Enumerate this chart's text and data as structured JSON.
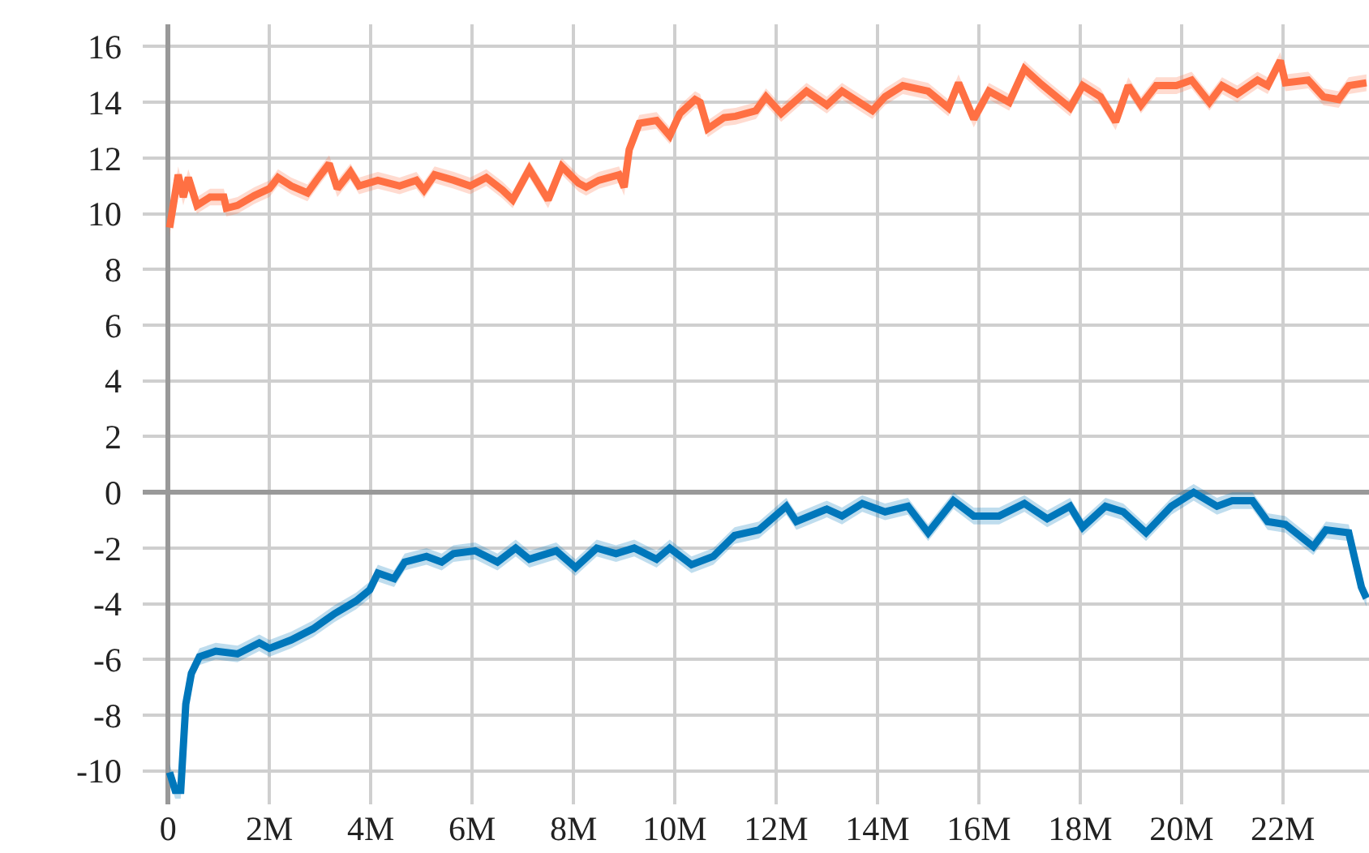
{
  "chart_data": {
    "type": "line",
    "xlim": [
      -0.5,
      23.7
    ],
    "ylim": [
      -11.2,
      16.8
    ],
    "xticks": [
      0,
      {
        "value": 2,
        "label": "2M"
      },
      {
        "value": 4,
        "label": "4M"
      },
      {
        "value": 6,
        "label": "6M"
      },
      {
        "value": 8,
        "label": "8M"
      },
      {
        "value": 10,
        "label": "10M"
      },
      {
        "value": 12,
        "label": "12M"
      },
      {
        "value": 14,
        "label": "14M"
      },
      {
        "value": 16,
        "label": "16M"
      },
      {
        "value": 18,
        "label": "18M"
      },
      {
        "value": 20,
        "label": "20M"
      },
      {
        "value": 22,
        "label": "22M"
      }
    ],
    "yticks": [
      -10,
      -8,
      -6,
      -4,
      -2,
      0,
      2,
      4,
      6,
      8,
      10,
      12,
      14,
      16
    ],
    "grid": true,
    "marker": "none",
    "line_style": "solid",
    "series": [
      {
        "color": "#ff7043",
        "x": [
          0.03,
          0.2,
          0.3,
          0.4,
          0.57,
          0.83,
          1.1,
          1.15,
          1.37,
          1.7,
          2.0,
          2.17,
          2.43,
          2.75,
          2.97,
          3.18,
          3.34,
          3.6,
          3.77,
          4.14,
          4.57,
          4.9,
          5.05,
          5.26,
          5.64,
          5.96,
          6.28,
          6.6,
          6.8,
          7.13,
          7.5,
          7.77,
          8.1,
          8.25,
          8.5,
          8.9,
          9.0,
          9.1,
          9.3,
          9.64,
          9.9,
          10.1,
          10.4,
          10.5,
          10.65,
          10.97,
          11.2,
          11.6,
          11.8,
          12.1,
          12.6,
          13.0,
          13.3,
          13.9,
          14.15,
          14.5,
          15.0,
          15.4,
          15.6,
          15.9,
          16.2,
          16.6,
          16.9,
          17.2,
          17.8,
          18.05,
          18.4,
          18.7,
          18.95,
          19.2,
          19.5,
          19.9,
          20.2,
          20.55,
          20.8,
          21.1,
          21.5,
          21.7,
          21.95,
          22.05,
          22.5,
          22.8,
          23.1,
          23.3,
          23.65
        ],
        "values": [
          9.5,
          11.4,
          10.6,
          11.3,
          10.3,
          10.6,
          10.6,
          10.2,
          10.3,
          10.65,
          10.9,
          11.3,
          11.0,
          10.75,
          11.3,
          11.8,
          10.9,
          11.5,
          11.0,
          11.2,
          11.0,
          11.2,
          10.85,
          11.4,
          11.2,
          11.0,
          11.3,
          10.85,
          10.5,
          11.6,
          10.5,
          11.7,
          11.1,
          10.95,
          11.2,
          11.4,
          10.95,
          12.3,
          13.25,
          13.35,
          12.8,
          13.6,
          14.1,
          14.0,
          13.05,
          13.45,
          13.5,
          13.7,
          14.2,
          13.6,
          14.4,
          13.9,
          14.4,
          13.7,
          14.2,
          14.6,
          14.4,
          13.8,
          14.7,
          13.4,
          14.4,
          14.0,
          15.2,
          14.7,
          13.8,
          14.6,
          14.2,
          13.3,
          14.6,
          13.9,
          14.6,
          14.6,
          14.8,
          14.0,
          14.6,
          14.3,
          14.8,
          14.6,
          15.5,
          14.7,
          14.8,
          14.2,
          14.1,
          14.6,
          14.7
        ],
        "lower": [
          9.2,
          11.1,
          10.3,
          11.0,
          10.0,
          10.3,
          10.3,
          9.9,
          10.0,
          10.35,
          10.6,
          11.0,
          10.7,
          10.45,
          11.0,
          11.5,
          10.6,
          11.2,
          10.7,
          10.9,
          10.7,
          10.9,
          10.55,
          11.1,
          10.9,
          10.7,
          11.0,
          10.55,
          10.2,
          11.3,
          10.2,
          11.4,
          10.8,
          10.65,
          10.9,
          11.1,
          10.65,
          12.0,
          12.95,
          13.05,
          12.5,
          13.3,
          13.8,
          13.7,
          12.75,
          13.15,
          13.2,
          13.4,
          13.9,
          13.3,
          14.1,
          13.6,
          14.1,
          13.4,
          13.9,
          14.3,
          14.1,
          13.5,
          14.4,
          13.1,
          14.1,
          13.7,
          14.9,
          14.4,
          13.5,
          14.3,
          13.9,
          13.0,
          14.3,
          13.6,
          14.3,
          14.3,
          14.5,
          13.7,
          14.3,
          14.0,
          14.5,
          14.3,
          15.2,
          14.4,
          14.5,
          13.9,
          13.8,
          14.3,
          14.4
        ],
        "upper": [
          9.8,
          11.7,
          10.9,
          11.6,
          10.6,
          10.9,
          10.9,
          10.5,
          10.6,
          10.95,
          11.2,
          11.6,
          11.3,
          11.05,
          11.6,
          12.1,
          11.2,
          11.8,
          11.3,
          11.5,
          11.3,
          11.5,
          11.15,
          11.7,
          11.5,
          11.3,
          11.6,
          11.15,
          10.8,
          11.9,
          10.8,
          12.0,
          11.4,
          11.25,
          11.5,
          11.7,
          11.25,
          12.6,
          13.55,
          13.65,
          13.1,
          13.9,
          14.4,
          14.3,
          13.35,
          13.75,
          13.8,
          14.0,
          14.5,
          13.9,
          14.7,
          14.2,
          14.7,
          14.0,
          14.5,
          14.9,
          14.7,
          14.1,
          15.0,
          13.7,
          14.7,
          14.3,
          15.5,
          15.0,
          14.1,
          14.9,
          14.5,
          13.6,
          14.9,
          14.2,
          14.9,
          14.9,
          15.1,
          14.3,
          14.9,
          14.6,
          15.1,
          14.9,
          15.8,
          15.0,
          15.1,
          14.5,
          14.4,
          14.9,
          15.0
        ]
      },
      {
        "color": "#0077bb",
        "x": [
          0.03,
          0.14,
          0.25,
          0.35,
          0.46,
          0.62,
          0.94,
          1.37,
          1.8,
          2.0,
          2.43,
          2.86,
          3.29,
          3.71,
          3.98,
          4.14,
          4.46,
          4.67,
          5.1,
          5.4,
          5.63,
          6.06,
          6.5,
          6.86,
          7.13,
          7.66,
          8.04,
          8.46,
          8.84,
          9.2,
          9.64,
          9.9,
          10.33,
          10.76,
          11.18,
          11.66,
          12.2,
          12.4,
          13.0,
          13.3,
          13.7,
          14.15,
          14.6,
          15.0,
          15.5,
          15.9,
          16.4,
          16.9,
          17.35,
          17.8,
          18.05,
          18.5,
          18.85,
          19.3,
          19.8,
          20.24,
          20.7,
          21.0,
          21.4,
          21.7,
          22.05,
          22.6,
          22.85,
          23.3,
          23.55,
          23.65
        ],
        "values": [
          -10.05,
          -10.7,
          -10.7,
          -7.6,
          -6.5,
          -5.9,
          -5.7,
          -5.8,
          -5.4,
          -5.6,
          -5.3,
          -4.9,
          -4.35,
          -3.9,
          -3.5,
          -2.9,
          -3.1,
          -2.5,
          -2.3,
          -2.5,
          -2.2,
          -2.1,
          -2.5,
          -2.0,
          -2.4,
          -2.1,
          -2.7,
          -2.0,
          -2.2,
          -2.0,
          -2.4,
          -2.0,
          -2.6,
          -2.3,
          -1.55,
          -1.35,
          -0.5,
          -1.05,
          -0.6,
          -0.85,
          -0.4,
          -0.7,
          -0.5,
          -1.45,
          -0.3,
          -0.85,
          -0.85,
          -0.4,
          -0.95,
          -0.5,
          -1.25,
          -0.5,
          -0.7,
          -1.45,
          -0.5,
          0.0,
          -0.5,
          -0.3,
          -0.3,
          -1.05,
          -1.15,
          -1.95,
          -1.35,
          -1.45,
          -3.4,
          -3.8
        ],
        "lower": [
          -10.35,
          -11.0,
          -11.0,
          -7.9,
          -6.8,
          -6.2,
          -6.0,
          -6.1,
          -5.7,
          -5.9,
          -5.6,
          -5.2,
          -4.65,
          -4.2,
          -3.8,
          -3.2,
          -3.4,
          -2.8,
          -2.6,
          -2.8,
          -2.5,
          -2.4,
          -2.8,
          -2.3,
          -2.7,
          -2.4,
          -3.0,
          -2.3,
          -2.5,
          -2.3,
          -2.7,
          -2.3,
          -2.9,
          -2.6,
          -1.85,
          -1.65,
          -0.8,
          -1.35,
          -0.9,
          -1.15,
          -0.7,
          -1.0,
          -0.8,
          -1.75,
          -0.6,
          -1.15,
          -1.15,
          -0.7,
          -1.25,
          -0.8,
          -1.55,
          -0.8,
          -1.0,
          -1.75,
          -0.8,
          -0.3,
          -0.8,
          -0.6,
          -0.6,
          -1.35,
          -1.45,
          -2.25,
          -1.65,
          -1.75,
          -3.7,
          -4.1
        ],
        "upper": [
          -9.75,
          -10.4,
          -10.4,
          -7.3,
          -6.2,
          -5.6,
          -5.4,
          -5.5,
          -5.1,
          -5.3,
          -5.0,
          -4.6,
          -4.05,
          -3.6,
          -3.2,
          -2.6,
          -2.8,
          -2.2,
          -2.0,
          -2.2,
          -1.9,
          -1.8,
          -2.2,
          -1.7,
          -2.1,
          -1.8,
          -2.4,
          -1.7,
          -1.9,
          -1.7,
          -2.1,
          -1.7,
          -2.3,
          -2.0,
          -1.25,
          -1.05,
          -0.2,
          -0.75,
          -0.3,
          -0.55,
          -0.1,
          -0.4,
          -0.2,
          -1.15,
          0.0,
          -0.55,
          -0.55,
          -0.1,
          -0.65,
          -0.2,
          -0.95,
          -0.2,
          -0.4,
          -1.15,
          -0.2,
          0.3,
          -0.2,
          0.0,
          0.0,
          -0.75,
          -0.85,
          -1.65,
          -1.05,
          -1.15,
          -3.1,
          -3.5
        ]
      }
    ]
  }
}
